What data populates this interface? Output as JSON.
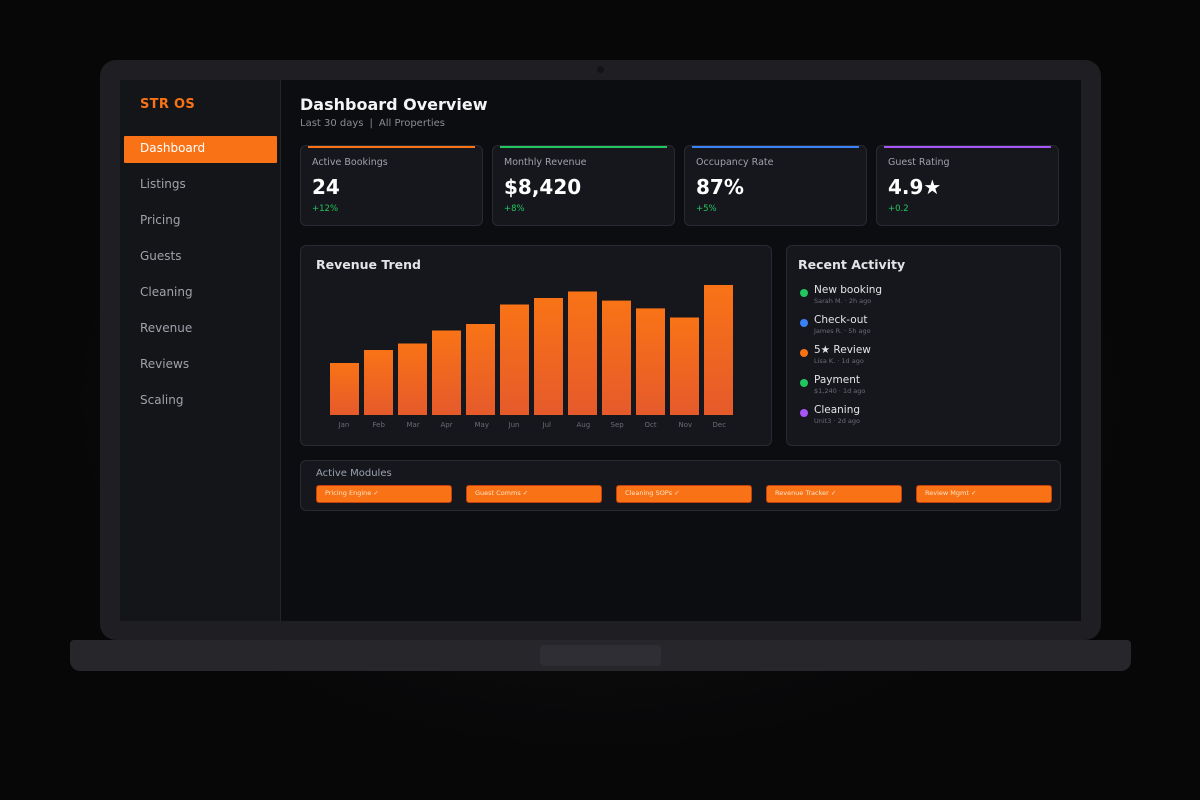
{
  "sidebar": {
    "brand": "STR OS",
    "items": [
      {
        "label": "Dashboard",
        "active": true
      },
      {
        "label": "Listings"
      },
      {
        "label": "Pricing"
      },
      {
        "label": "Guests"
      },
      {
        "label": "Cleaning"
      },
      {
        "label": "Revenue"
      },
      {
        "label": "Reviews"
      },
      {
        "label": "Scaling"
      }
    ]
  },
  "header": {
    "title": "Dashboard Overview",
    "range": "Last 30 days",
    "separator": "|",
    "scope": "All Properties"
  },
  "stats": [
    {
      "label": "Active Bookings",
      "value": "24",
      "delta": "+12%",
      "accent": "#f97316"
    },
    {
      "label": "Monthly Revenue",
      "value": "$8,420",
      "delta": "+8%",
      "accent": "#22c55e"
    },
    {
      "label": "Occupancy Rate",
      "value": "87%",
      "delta": "+5%",
      "accent": "#3b82f6"
    },
    {
      "label": "Guest Rating",
      "value": "4.9★",
      "delta": "+0.2",
      "accent": "#a855f7"
    }
  ],
  "revenue_panel": {
    "title": "Revenue Trend"
  },
  "chart_data": {
    "type": "bar",
    "categories": [
      "Jan",
      "Feb",
      "Mar",
      "Apr",
      "May",
      "Jun",
      "Jul",
      "Aug",
      "Sep",
      "Oct",
      "Nov",
      "Dec"
    ],
    "values": [
      40,
      50,
      55,
      65,
      70,
      85,
      90,
      95,
      88,
      82,
      75,
      100
    ],
    "ylim": [
      0,
      100
    ],
    "bar_color_top": "#f97316",
    "bar_color_bottom": "#e55a2b"
  },
  "activity": {
    "title": "Recent Activity",
    "items": [
      {
        "title": "New booking",
        "meta": "Sarah M. · 2h ago",
        "color": "#22c55e"
      },
      {
        "title": "Check-out",
        "meta": "James R. · 5h ago",
        "color": "#3b82f6"
      },
      {
        "title": "5★ Review",
        "meta": "Lisa K. · 1d ago",
        "color": "#f97316"
      },
      {
        "title": "Payment",
        "meta": "$1,240 · 1d ago",
        "color": "#22c55e"
      },
      {
        "title": "Cleaning",
        "meta": "Unit3 · 2d ago",
        "color": "#a855f7"
      }
    ]
  },
  "modules": {
    "label": "Active Modules",
    "items": [
      "Pricing Engine ✓",
      "Guest Comms ✓",
      "Cleaning SOPs ✓",
      "Revenue Tracker ✓",
      "Review Mgmt ✓"
    ]
  }
}
